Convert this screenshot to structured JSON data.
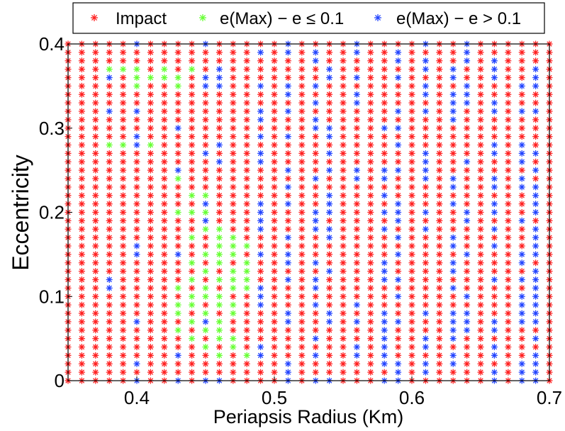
{
  "chart_data": {
    "type": "scatter",
    "xlabel": "Periapsis Radius (Km)",
    "ylabel": "Eccentricity",
    "xlim": [
      0.35,
      0.7
    ],
    "ylim": [
      0,
      0.4
    ],
    "xticks": [
      0.4,
      0.5,
      0.6,
      0.7
    ],
    "yticks": [
      0,
      0.1,
      0.2,
      0.3,
      0.4
    ],
    "xtick_labels": [
      "0.4",
      "0.5",
      "0.6",
      "0.7"
    ],
    "ytick_labels": [
      "0",
      "0.1",
      "0.2",
      "0.3",
      "0.4"
    ],
    "grid": false,
    "legend_position": "top",
    "marker": "*",
    "grid_step_x": 0.01,
    "grid_step_y": 0.01,
    "series": [
      {
        "name": "Impact",
        "color": "#ff2020"
      },
      {
        "name": "e(Max) − e ≤ 0.1",
        "color": "#66ff33"
      },
      {
        "name": "e(Max) − e >  0.1",
        "color": "#2244ff"
      }
    ],
    "green_points": [
      [
        0.38,
        0.37
      ],
      [
        0.39,
        0.37
      ],
      [
        0.4,
        0.37
      ],
      [
        0.42,
        0.37
      ],
      [
        0.44,
        0.37
      ],
      [
        0.4,
        0.36
      ],
      [
        0.41,
        0.36
      ],
      [
        0.42,
        0.36
      ],
      [
        0.43,
        0.36
      ],
      [
        0.4,
        0.35
      ],
      [
        0.43,
        0.35
      ],
      [
        0.38,
        0.28
      ],
      [
        0.39,
        0.28
      ],
      [
        0.41,
        0.28
      ],
      [
        0.43,
        0.24
      ],
      [
        0.44,
        0.22
      ],
      [
        0.45,
        0.22
      ],
      [
        0.43,
        0.2
      ],
      [
        0.44,
        0.2
      ],
      [
        0.45,
        0.2
      ],
      [
        0.45,
        0.18
      ],
      [
        0.46,
        0.18
      ],
      [
        0.44,
        0.17
      ],
      [
        0.46,
        0.17
      ],
      [
        0.47,
        0.17
      ],
      [
        0.46,
        0.16
      ],
      [
        0.47,
        0.16
      ],
      [
        0.48,
        0.16
      ],
      [
        0.45,
        0.15
      ],
      [
        0.46,
        0.15
      ],
      [
        0.47,
        0.15
      ],
      [
        0.44,
        0.14
      ],
      [
        0.46,
        0.14
      ],
      [
        0.48,
        0.14
      ],
      [
        0.45,
        0.13
      ],
      [
        0.47,
        0.13
      ],
      [
        0.48,
        0.13
      ],
      [
        0.44,
        0.12
      ],
      [
        0.46,
        0.12
      ],
      [
        0.47,
        0.12
      ],
      [
        0.48,
        0.12
      ],
      [
        0.43,
        0.11
      ],
      [
        0.45,
        0.11
      ],
      [
        0.47,
        0.11
      ],
      [
        0.48,
        0.11
      ],
      [
        0.44,
        0.1
      ],
      [
        0.45,
        0.1
      ],
      [
        0.46,
        0.1
      ],
      [
        0.43,
        0.09
      ],
      [
        0.44,
        0.09
      ],
      [
        0.46,
        0.09
      ],
      [
        0.47,
        0.09
      ],
      [
        0.43,
        0.08
      ],
      [
        0.45,
        0.08
      ],
      [
        0.47,
        0.08
      ],
      [
        0.44,
        0.07
      ],
      [
        0.46,
        0.07
      ],
      [
        0.43,
        0.06
      ],
      [
        0.45,
        0.06
      ],
      [
        0.46,
        0.06
      ],
      [
        0.44,
        0.05
      ],
      [
        0.46,
        0.05
      ],
      [
        0.47,
        0.05
      ],
      [
        0.45,
        0.04
      ],
      [
        0.47,
        0.04
      ],
      [
        0.46,
        0.03
      ],
      [
        0.48,
        0.03
      ]
    ],
    "red_columns": [
      0.35,
      0.36,
      0.37,
      0.39,
      0.41,
      0.42,
      0.44,
      0.47,
      0.48,
      0.5,
      0.52,
      0.55,
      0.57,
      0.6,
      0.62,
      0.65,
      0.67,
      0.7
    ]
  }
}
